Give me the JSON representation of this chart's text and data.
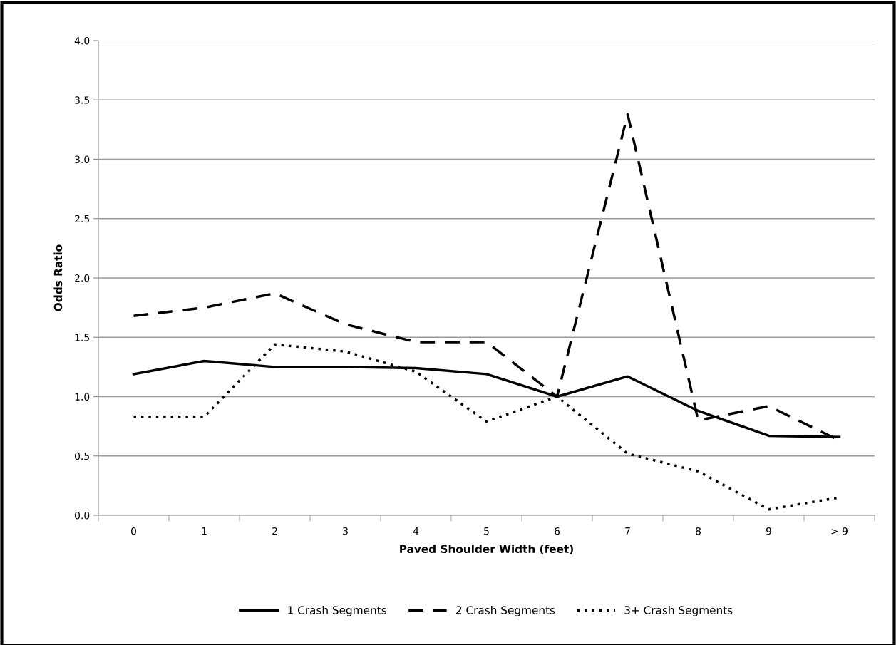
{
  "chart_data": {
    "type": "line",
    "xlabel": "Paved Shoulder Width (feet)",
    "ylabel": "Odds Ratio",
    "categories": [
      "0",
      "1",
      "2",
      "3",
      "4",
      "5",
      "6",
      "7",
      "8",
      "9",
      "> 9"
    ],
    "series": [
      {
        "name": "1 Crash Segments",
        "color": "#000000",
        "line_style": "solid",
        "values": [
          1.19,
          1.3,
          1.25,
          1.25,
          1.24,
          1.19,
          1.0,
          1.17,
          0.88,
          0.67,
          0.66
        ]
      },
      {
        "name": "2 Crash Segments",
        "color": "#000000",
        "line_style": "dashed",
        "values": [
          1.68,
          1.75,
          1.87,
          1.61,
          1.46,
          1.46,
          1.0,
          3.38,
          0.8,
          0.92,
          0.63
        ]
      },
      {
        "name": "3+ Crash Segments",
        "color": "#000000",
        "line_style": "dotted",
        "values": [
          0.83,
          0.83,
          1.44,
          1.38,
          1.21,
          0.79,
          1.0,
          0.52,
          0.37,
          0.05,
          0.15
        ]
      }
    ],
    "ylim": [
      0,
      4
    ],
    "yticks": [
      {
        "value": 0,
        "label": "0.0"
      },
      {
        "value": 0.5,
        "label": "0.5"
      },
      {
        "value": 1,
        "label": "1.0"
      },
      {
        "value": 1.5,
        "label": "1.5"
      },
      {
        "value": 2,
        "label": "2.0"
      },
      {
        "value": 2.5,
        "label": "2.5"
      },
      {
        "value": 3,
        "label": "3.0"
      },
      {
        "value": 3.5,
        "label": "3.5"
      },
      {
        "value": 4,
        "label": "4.0"
      }
    ],
    "grid": "y",
    "legend": "bottom",
    "marker": "none"
  }
}
